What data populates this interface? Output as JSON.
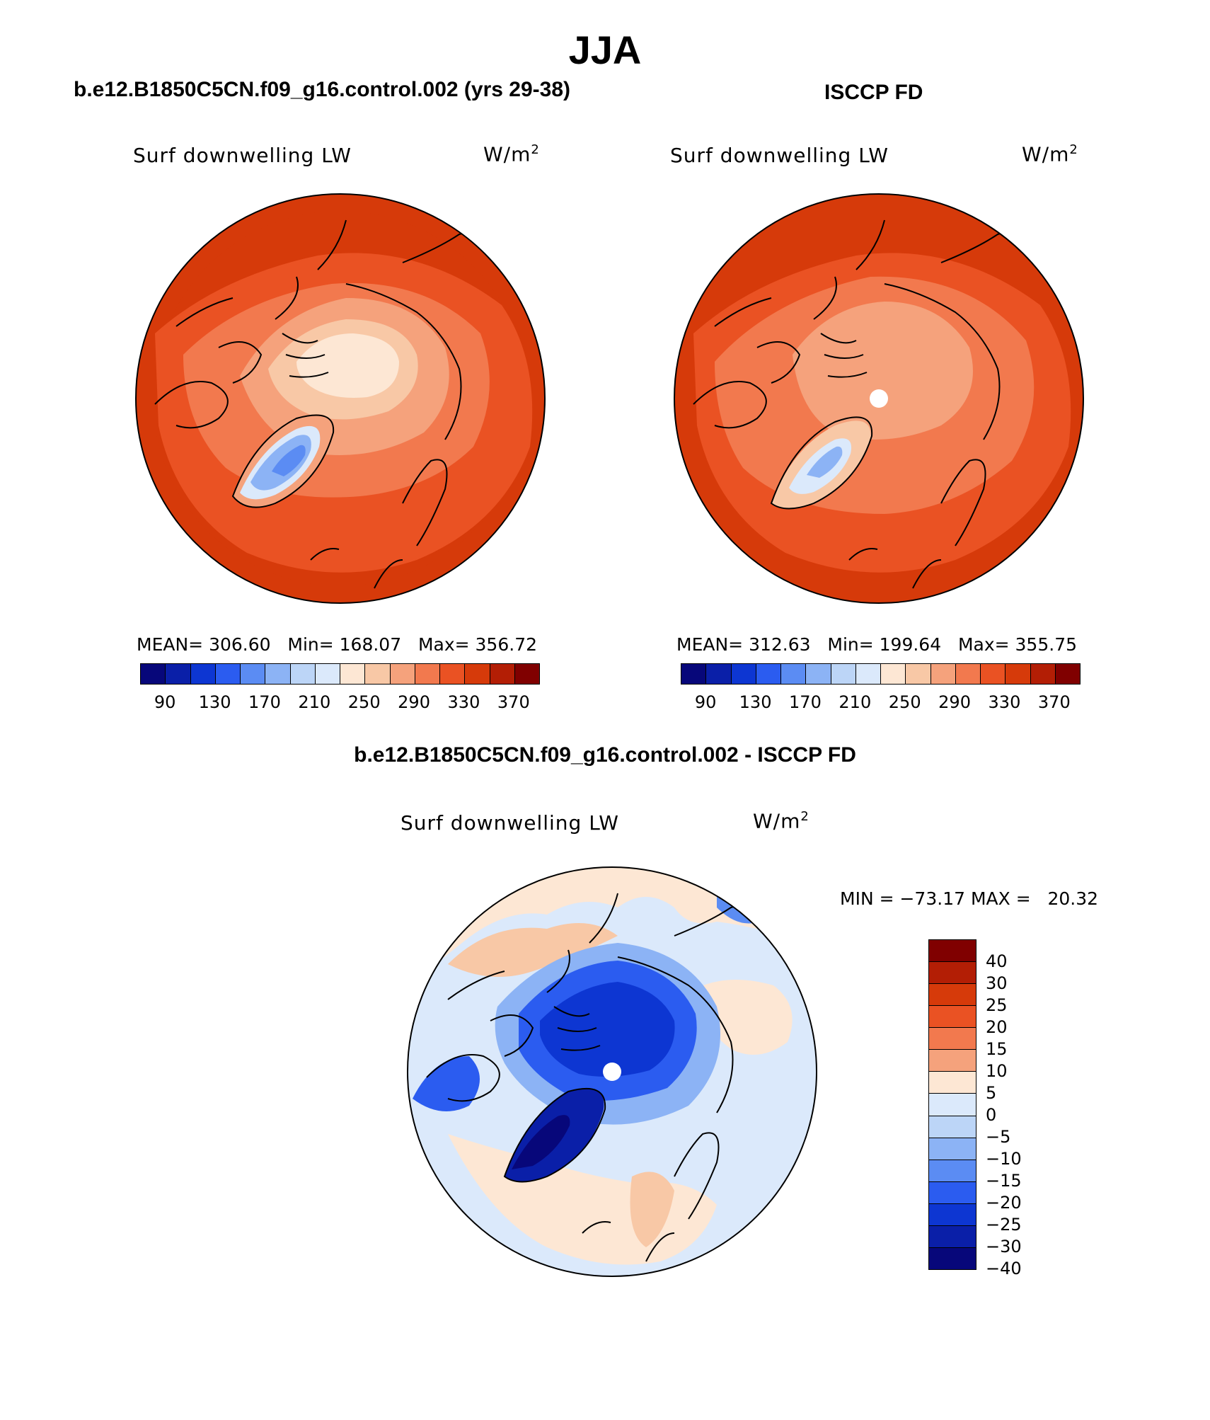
{
  "page_title": "JJA",
  "panels": [
    {
      "header": "b.e12.B1850C5CN.f09_g16.control.002 (yrs 29-38)",
      "variable": "Surf downwelling LW",
      "units": "W/m",
      "units_exp": "2",
      "stats": "MEAN= 306.60   Min= 168.07   Max= 356.72"
    },
    {
      "header": "ISCCP FD",
      "variable": "Surf downwelling LW",
      "units": "W/m",
      "units_exp": "2",
      "stats": "MEAN= 312.63   Min= 199.64   Max= 355.75"
    },
    {
      "header": "b.e12.B1850C5CN.f09_g16.control.002 - ISCCP FD",
      "variable": "Surf downwelling LW",
      "units": "W/m",
      "units_exp": "2",
      "stats": "MIN = −73.17 MAX =   20.32"
    }
  ],
  "abs_colorbar": {
    "colors": [
      "#07077a",
      "#0a1fa8",
      "#0d36d2",
      "#2b5cf0",
      "#5b8cf3",
      "#8cb3f5",
      "#bcd5f7",
      "#dbe9fb",
      "#fde7d4",
      "#f8c8a6",
      "#f5a27c",
      "#f2794e",
      "#ea5223",
      "#d63a0a",
      "#b31e05",
      "#800000"
    ],
    "tick_labels": [
      "90",
      "130",
      "170",
      "210",
      "250",
      "290",
      "330",
      "370"
    ]
  },
  "diff_colorbar": {
    "colors": [
      "#800000",
      "#b31e05",
      "#d63a0a",
      "#ea5223",
      "#f2794e",
      "#f5a27c",
      "#fde7d4",
      "#dbe9fb",
      "#bcd5f7",
      "#8cb3f5",
      "#5b8cf3",
      "#2b5cf0",
      "#0d36d2",
      "#0a1fa8",
      "#07077a"
    ],
    "tick_labels": [
      "40",
      "30",
      "25",
      "20",
      "15",
      "10",
      "5",
      "0",
      "−5",
      "−10",
      "−15",
      "−20",
      "−25",
      "−30",
      "−40"
    ]
  }
}
